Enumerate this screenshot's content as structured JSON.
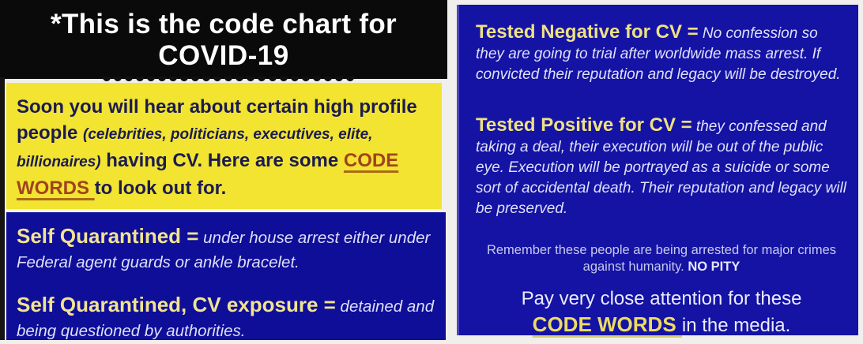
{
  "title": {
    "line1": "*This is the code chart for",
    "line2": "COVID-19"
  },
  "left_panel": {
    "intro": {
      "lead": "Soon you will hear about certain high profile people ",
      "parenthetical": "(celebrities, politicians, executives, elite, billionaires)",
      "middle": " having CV. Here are some ",
      "code_words": "CODE WORDS ",
      "tail": "to look out for."
    },
    "entries": [
      {
        "term": "Self Quarantined =",
        "definition": " under house arrest either under Federal agent guards or ankle bracelet."
      },
      {
        "term": "Self Quarantined, CV exposure =",
        "definition": " detained and being questioned by authorities."
      }
    ]
  },
  "right_panel": {
    "entries": [
      {
        "term": "Tested Negative for CV =",
        "definition": " No confession so they are going to trial after worldwide mass arrest. If convicted their reputation and legacy will be destroyed."
      },
      {
        "term": "Tested Positive for CV =",
        "definition": " they confessed and taking a deal, their execution will be out of the public eye. Execution will be portrayed as a suicide or some sort of accidental death. Their reputation and legacy will be preserved."
      }
    ],
    "reminder": {
      "text": "Remember these people are being arrested for major crimes against humanity. ",
      "emphasis": "NO PITY"
    },
    "closing": {
      "line1": "Pay very close attention for these",
      "code_words": "CODE WORDS ",
      "line2": "in the media."
    }
  },
  "colors": {
    "header_bg": "#0b0a0a",
    "yellow_bg": "#f2e431",
    "navy_text": "#1b1b50",
    "code_words_left": "#a1431f",
    "blue_bg_left": "#0e0e99",
    "blue_bg_right": "#1413a4",
    "term_yellow": "#f2e390",
    "definition_white": "#dfdffa",
    "code_words_right": "#ecdc60"
  }
}
